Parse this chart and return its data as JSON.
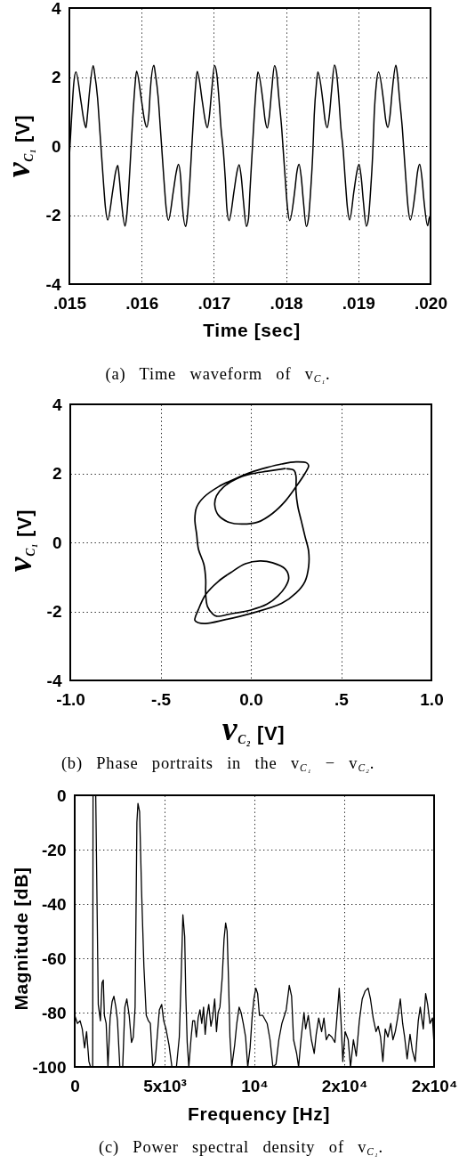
{
  "chart_data": [
    {
      "type": "line",
      "xlabel": "Time [sec]",
      "ylabel": "v$_{C₁}$ [V]",
      "annotations": [
        "(a) Time waveform of v$_{C₁}$."
      ],
      "color": "#000000",
      "xlim": [
        0.015,
        0.02
      ],
      "xticks": [
        {
          "value": 0.015,
          "label": ".015"
        },
        {
          "value": 0.016,
          "label": ".016"
        },
        {
          "value": 0.017,
          "label": ".017"
        },
        {
          "value": 0.018,
          "label": ".018"
        },
        {
          "value": 0.019,
          "label": ".019"
        },
        {
          "value": 0.02,
          "label": ".020"
        }
      ],
      "ylim": [
        -4,
        4
      ],
      "yticks": [
        -4,
        -2,
        0,
        2,
        4
      ],
      "grid": true,
      "x": [
        0.015,
        0.01503,
        0.01506,
        0.01509,
        0.01516,
        0.0152,
        0.01523,
        0.01525,
        0.01528,
        0.01533,
        0.01535,
        0.01539,
        0.01542,
        0.01544,
        0.01547,
        0.0155,
        0.01553,
        0.0156,
        0.01564,
        0.01567,
        0.01569,
        0.01572,
        0.01577,
        0.01579,
        0.01582,
        0.01585,
        0.01588,
        0.01591,
        0.01593,
        0.016,
        0.01604,
        0.01607,
        0.0161,
        0.01612,
        0.01617,
        0.01619,
        0.01623,
        0.01626,
        0.01628,
        0.01631,
        0.01634,
        0.01637,
        0.01644,
        0.01648,
        0.01651,
        0.01654,
        0.01656,
        0.01661,
        0.01663,
        0.01666,
        0.01669,
        0.01672,
        0.01675,
        0.01677,
        0.01684,
        0.01688,
        0.01691,
        0.01694,
        0.01697,
        0.01701,
        0.01704,
        0.01707,
        0.0171,
        0.01713,
        0.01716,
        0.01718,
        0.01721,
        0.01728,
        0.01732,
        0.01735,
        0.01738,
        0.01741,
        0.01745,
        0.01748,
        0.0175,
        0.01753,
        0.01756,
        0.01759,
        0.01761,
        0.01768,
        0.01771,
        0.01774,
        0.01777,
        0.0178,
        0.01784,
        0.01787,
        0.0179,
        0.01794,
        0.01796,
        0.01799,
        0.01802,
        0.01805,
        0.01812,
        0.01815,
        0.01818,
        0.01821,
        0.01824,
        0.01828,
        0.01831,
        0.01834,
        0.01837,
        0.01839,
        0.01842,
        0.01844,
        0.01851,
        0.01854,
        0.01857,
        0.0186,
        0.01863,
        0.01867,
        0.0187,
        0.01873,
        0.01876,
        0.01879,
        0.01882,
        0.01885,
        0.01888,
        0.01894,
        0.01898,
        0.01901,
        0.01904,
        0.01907,
        0.01911,
        0.01914,
        0.01917,
        0.0192,
        0.01922,
        0.01925,
        0.01928,
        0.01935,
        0.01938,
        0.01941,
        0.01944,
        0.01947,
        0.01952,
        0.01954,
        0.01957,
        0.01961,
        0.01963,
        0.01966,
        0.01969,
        0.01972,
        0.01979,
        0.01982,
        0.01985,
        0.01988,
        0.01991,
        0.01996,
        0.01998,
        0.02
      ],
      "values": [
        -0.3,
        0.8,
        1.8,
        2.15,
        1.3,
        0.75,
        0.53,
        0.9,
        1.6,
        2.33,
        2.1,
        1.4,
        0.5,
        -0.1,
        -1.0,
        -1.8,
        -2.14,
        -1.3,
        -0.75,
        -0.56,
        -0.9,
        -1.6,
        -2.32,
        -2.1,
        -1.3,
        -0.2,
        0.9,
        1.8,
        2.17,
        1.3,
        0.75,
        0.55,
        0.9,
        1.6,
        2.34,
        2.1,
        1.4,
        0.5,
        -0.1,
        -1.0,
        -1.8,
        -2.15,
        -1.3,
        -0.75,
        -0.53,
        -0.9,
        -1.6,
        -2.33,
        -2.1,
        -1.3,
        -0.2,
        0.9,
        1.8,
        2.16,
        1.3,
        0.75,
        0.53,
        0.9,
        1.6,
        2.33,
        2.1,
        1.4,
        0.5,
        -0.1,
        -1.0,
        -1.8,
        -2.16,
        -1.3,
        -0.75,
        -0.54,
        -0.9,
        -1.6,
        -2.33,
        -2.1,
        -1.3,
        -0.2,
        0.9,
        1.8,
        2.15,
        1.3,
        0.75,
        0.52,
        0.9,
        1.6,
        2.33,
        2.1,
        1.4,
        0.5,
        -0.1,
        -1.0,
        -1.8,
        -2.16,
        -1.3,
        -0.75,
        -0.53,
        -0.9,
        -1.6,
        -2.33,
        -2.1,
        -1.3,
        -0.2,
        0.9,
        1.8,
        2.15,
        1.3,
        0.75,
        0.53,
        0.9,
        1.6,
        2.35,
        2.1,
        1.4,
        0.5,
        -0.1,
        -1.0,
        -1.8,
        -2.14,
        -1.3,
        -0.75,
        -0.53,
        -0.9,
        -1.6,
        -2.32,
        -2.1,
        -1.3,
        -0.2,
        0.9,
        1.8,
        2.15,
        1.3,
        0.75,
        0.54,
        0.9,
        1.6,
        2.34,
        2.1,
        1.4,
        0.5,
        -0.1,
        -1.0,
        -1.8,
        -2.14,
        -1.3,
        -0.75,
        -0.53,
        -0.9,
        -1.6,
        -2.31,
        -2.1,
        -2.0
      ]
    },
    {
      "type": "line",
      "xlabel": "v$_{C₂}$ [V]",
      "ylabel": "v$_{C₁}$ [V]",
      "annotations": [
        "(b) Phase portraits in the v$_{C₁}$ − v$_{C₂}$."
      ],
      "color": "#000000",
      "xlim": [
        -1,
        1
      ],
      "xticks": [
        {
          "value": -1,
          "label": "-1.0"
        },
        {
          "value": -0.5,
          "label": "-.5"
        },
        {
          "value": 0,
          "label": "0.0"
        },
        {
          "value": 0.5,
          "label": ".5"
        },
        {
          "value": 1,
          "label": "1.0"
        }
      ],
      "ylim": [
        -4,
        4
      ],
      "yticks": [
        -4,
        -2,
        0,
        2,
        4
      ],
      "grid": true,
      "x": [
        0.19,
        0.09,
        0.0,
        -0.08,
        -0.15,
        -0.19,
        -0.2,
        -0.18,
        -0.12,
        -0.05,
        0.04,
        0.12,
        0.19,
        0.25,
        0.3,
        0.32,
        0.31,
        0.25,
        0.17,
        0.09,
        0.0,
        -0.08,
        -0.18,
        -0.26,
        -0.3,
        -0.31,
        -0.3,
        -0.29,
        -0.26,
        -0.25,
        -0.25,
        -0.24,
        -0.21,
        -0.19,
        -0.11,
        0.0,
        0.09,
        0.15,
        0.19,
        0.21,
        0.19,
        0.12,
        0.05,
        -0.03,
        -0.11,
        -0.18,
        -0.25,
        -0.29,
        -0.31,
        -0.29,
        -0.25,
        -0.15,
        0.0,
        0.17,
        0.25,
        0.3,
        0.32,
        0.32,
        0.3,
        0.28,
        0.26,
        0.25,
        0.25,
        0.24,
        0.2
      ],
      "values": [
        2.14,
        2.06,
        1.98,
        1.84,
        1.61,
        1.35,
        1.09,
        0.79,
        0.58,
        0.53,
        0.59,
        0.84,
        1.19,
        1.61,
        2.0,
        2.22,
        2.3,
        2.33,
        2.27,
        2.17,
        2.03,
        1.86,
        1.61,
        1.31,
        1.02,
        0.67,
        0.23,
        -0.2,
        -0.64,
        -1.07,
        -1.51,
        -1.86,
        -2.08,
        -2.14,
        -2.07,
        -1.96,
        -1.79,
        -1.55,
        -1.3,
        -1.03,
        -0.77,
        -0.59,
        -0.54,
        -0.62,
        -0.87,
        -1.13,
        -1.51,
        -1.94,
        -2.26,
        -2.33,
        -2.35,
        -2.25,
        -2.06,
        -1.77,
        -1.47,
        -1.13,
        -0.7,
        -0.26,
        0.17,
        0.61,
        1.05,
        1.48,
        1.92,
        2.08,
        2.13
      ]
    },
    {
      "type": "line",
      "xlabel": "Frequency [Hz]",
      "ylabel": "Magnitude [dB]",
      "annotations": [
        "(c) Power spectral density of v$_{C₁}$."
      ],
      "color": "#000000",
      "xlim": [
        0,
        20000
      ],
      "xticks": [
        0,
        {
          "value": 5000,
          "label": "5x10³"
        },
        {
          "value": 10000,
          "label": "10⁴"
        },
        {
          "value": 15000,
          "label": "2x10⁴"
        },
        {
          "value": 20000,
          "label": "2x10⁴"
        }
      ],
      "ylim": [
        -100,
        0
      ],
      "yticks": [
        -100,
        -80,
        -60,
        -40,
        -20,
        0
      ],
      "grid": true,
      "x": [
        0,
        150,
        300,
        420,
        550,
        660,
        790,
        880,
        1000,
        1020,
        1170,
        1310,
        1430,
        1520,
        1590,
        1650,
        1750,
        1850,
        1970,
        2080,
        2180,
        2290,
        2380,
        2510,
        2670,
        2790,
        2900,
        3030,
        3160,
        3260,
        3360,
        3460,
        3520,
        3610,
        3720,
        3850,
        3980,
        4100,
        4210,
        4340,
        4480,
        4590,
        4710,
        4840,
        4950,
        5080,
        5250,
        5410,
        5660,
        5820,
        5920,
        6020,
        6120,
        6180,
        6260,
        6350,
        6480,
        6570,
        6670,
        6770,
        6870,
        6970,
        7070,
        7170,
        7260,
        7360,
        7460,
        7580,
        7670,
        7790,
        7890,
        7980,
        8080,
        8210,
        8310,
        8400,
        8480,
        8560,
        8640,
        8740,
        8900,
        9020,
        9150,
        9260,
        9380,
        9510,
        9630,
        9760,
        9870,
        9970,
        10080,
        10180,
        10280,
        10460,
        10710,
        10870,
        11030,
        11200,
        11360,
        11530,
        11770,
        11940,
        12070,
        12180,
        12350,
        12460,
        12590,
        12760,
        12850,
        13000,
        13170,
        13330,
        13440,
        13580,
        13740,
        13870,
        14000,
        14150,
        14310,
        14480,
        14590,
        14720,
        14820,
        14920,
        15050,
        15220,
        15350,
        15510,
        15670,
        15840,
        16000,
        16170,
        16330,
        16460,
        16610,
        16770,
        16890,
        17020,
        17150,
        17280,
        17430,
        17590,
        17710,
        17840,
        17970,
        18120,
        18250,
        18360,
        18500,
        18660,
        18790,
        18950,
        19120,
        19230,
        19400,
        19530,
        19640,
        19770,
        19910,
        20000
      ],
      "values": [
        -81,
        -84,
        -83,
        -86,
        -93,
        -87,
        -98,
        -100,
        -100,
        0,
        0,
        -77,
        -83,
        -69,
        -68,
        -81,
        -84,
        -100,
        -82,
        -76,
        -74,
        -78,
        -83,
        -100,
        -100,
        -78,
        -75,
        -81,
        -91,
        -89,
        -78,
        -10,
        -3,
        -6,
        -35,
        -63,
        -81,
        -83,
        -84,
        -100,
        -98,
        -89,
        -79,
        -77,
        -83,
        -86,
        -92,
        -100,
        -100,
        -89,
        -68,
        -44,
        -52,
        -73,
        -91,
        -100,
        -89,
        -83,
        -83,
        -89,
        -82,
        -79,
        -84,
        -78,
        -88,
        -81,
        -77,
        -85,
        -82,
        -75,
        -87,
        -80,
        -78,
        -67,
        -53,
        -47,
        -50,
        -68,
        -89,
        -100,
        -92,
        -84,
        -78,
        -80,
        -84,
        -89,
        -100,
        -93,
        -82,
        -75,
        -71,
        -73,
        -81,
        -81,
        -84,
        -90,
        -100,
        -99,
        -90,
        -84,
        -79,
        -70,
        -74,
        -90,
        -95,
        -100,
        -90,
        -80,
        -86,
        -81,
        -90,
        -95,
        -88,
        -82,
        -87,
        -82,
        -90,
        -88,
        -89,
        -91,
        -82,
        -71,
        -83,
        -98,
        -87,
        -90,
        -100,
        -90,
        -96,
        -83,
        -75,
        -72,
        -71,
        -75,
        -82,
        -87,
        -85,
        -89,
        -98,
        -86,
        -89,
        -84,
        -90,
        -87,
        -82,
        -75,
        -84,
        -89,
        -97,
        -88,
        -94,
        -98,
        -83,
        -78,
        -86,
        -73,
        -77,
        -84,
        -82,
        -92
      ]
    }
  ]
}
